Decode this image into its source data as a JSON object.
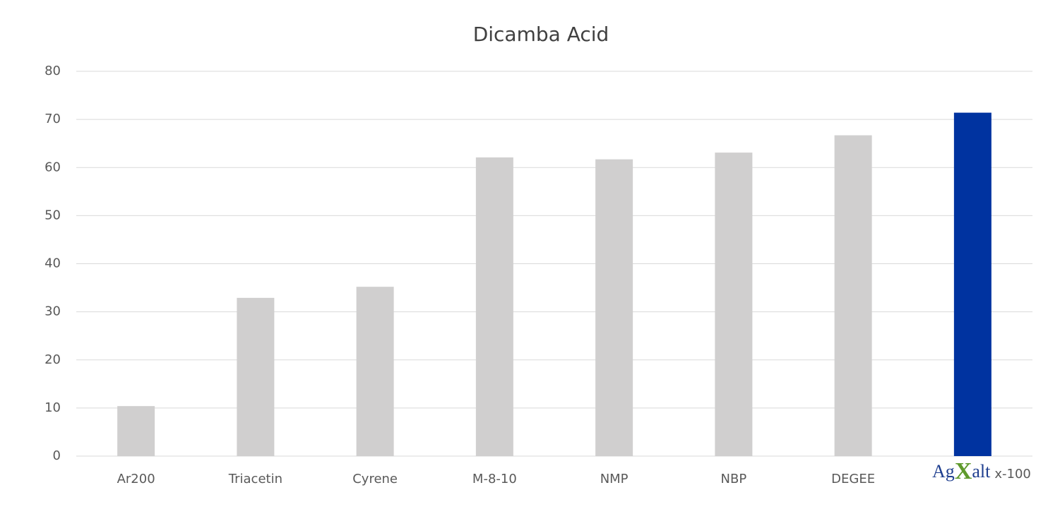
{
  "chart_data": {
    "type": "bar",
    "title": "Dicamba Acid",
    "categories": [
      "Ar200",
      "Triacetin",
      "Cyrene",
      "M-8-10",
      "NMP",
      "NBP",
      "DEGEE",
      "x-100"
    ],
    "category_logo": {
      "index": 7,
      "parts": [
        "Ag",
        "X",
        "alt"
      ],
      "colors": [
        "#1f3f8f",
        "#5f9a2c",
        "#1f3f8f"
      ]
    },
    "values": [
      10.4,
      32.9,
      35.2,
      62.1,
      61.7,
      63.1,
      66.7,
      71.4
    ],
    "colors": [
      "#d0cfcf",
      "#d0cfcf",
      "#d0cfcf",
      "#d0cfcf",
      "#d0cfcf",
      "#d0cfcf",
      "#d0cfcf",
      "#0033a0"
    ],
    "ylim": [
      0,
      80
    ],
    "yticks": [
      0,
      10,
      20,
      30,
      40,
      50,
      60,
      70,
      80
    ],
    "grid": true
  }
}
